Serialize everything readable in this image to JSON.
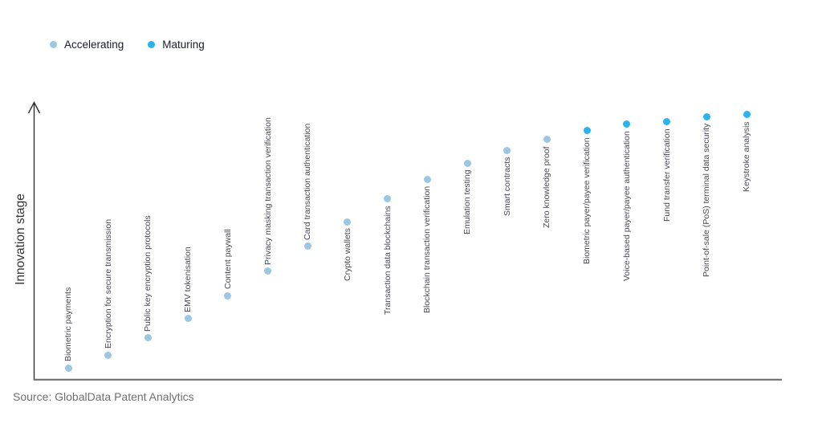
{
  "legend": {
    "items": [
      {
        "label": "Accelerating",
        "color": "#9CC6E1"
      },
      {
        "label": "Maturing",
        "color": "#2BB3F0"
      }
    ]
  },
  "axes": {
    "y_label": "Innovation stage",
    "y_axis_color": "#2f2f2f",
    "x_axis_color": "#6f6f6f"
  },
  "source": "Source: GlobalData Patent Analytics",
  "chart_data": {
    "type": "scatter",
    "title": "",
    "xlabel": "",
    "ylabel": "Innovation stage",
    "legend_position": "top-left",
    "grid": false,
    "y_axis": {
      "qualitative": true,
      "range": [
        0,
        1
      ],
      "arrow": true
    },
    "series_colors": {
      "Accelerating": "#9CC6E1",
      "Maturing": "#2BB3F0"
    },
    "points": [
      {
        "label": "Biometric payments",
        "series": "Accelerating",
        "stage_score": 0.042
      },
      {
        "label": "Encryption for secure transmission",
        "series": "Accelerating",
        "stage_score": 0.09
      },
      {
        "label": "Public key encryption protocols",
        "series": "Accelerating",
        "stage_score": 0.154
      },
      {
        "label": "EMV tokenisation",
        "series": "Accelerating",
        "stage_score": 0.226
      },
      {
        "label": "Content paywall",
        "series": "Accelerating",
        "stage_score": 0.313
      },
      {
        "label": "Privacy masking transaction verification",
        "series": "Accelerating",
        "stage_score": 0.404
      },
      {
        "label": "Card transaction authentication",
        "series": "Accelerating",
        "stage_score": 0.497
      },
      {
        "label": "Crypto wallets",
        "series": "Accelerating",
        "stage_score": 0.59
      },
      {
        "label": "Transaction data blockchains",
        "series": "Accelerating",
        "stage_score": 0.675
      },
      {
        "label": "Blockchain transaction verification",
        "series": "Accelerating",
        "stage_score": 0.747
      },
      {
        "label": "Emulation testing",
        "series": "Accelerating",
        "stage_score": 0.81
      },
      {
        "label": "Smart contracts",
        "series": "Accelerating",
        "stage_score": 0.858
      },
      {
        "label": "Zero knowledge proof",
        "series": "Accelerating",
        "stage_score": 0.898
      },
      {
        "label": "Biometric payer/payee verification",
        "series": "Maturing",
        "stage_score": 0.931
      },
      {
        "label": "Voice-based payer/payee authentication",
        "series": "Maturing",
        "stage_score": 0.955
      },
      {
        "label": "Fund transfer verification",
        "series": "Maturing",
        "stage_score": 0.964
      },
      {
        "label": "Point-of-sale (PoS) terminal data security",
        "series": "Maturing",
        "stage_score": 0.982
      },
      {
        "label": "Keystroke analysis",
        "series": "Maturing",
        "stage_score": 0.991
      }
    ]
  }
}
